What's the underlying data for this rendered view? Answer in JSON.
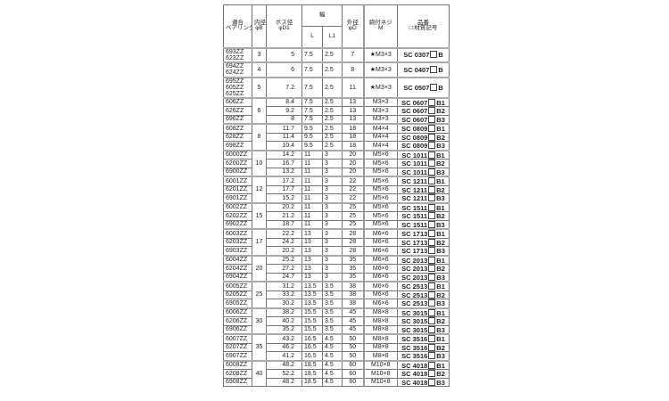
{
  "headers": {
    "bearing": [
      "適合",
      "ベアリング"
    ],
    "bore": [
      "内径",
      "φB"
    ],
    "boss": [
      "ボス径",
      "φD1"
    ],
    "width": "幅",
    "L": "L",
    "L1": "L1",
    "outer": [
      "外径",
      "φD"
    ],
    "screw": [
      "締付ネジ",
      "M"
    ],
    "part": [
      "品番",
      "□:材質記号"
    ]
  },
  "rows": [
    {
      "bearing": [
        "693ZZ",
        "623ZZ"
      ],
      "bore": "3",
      "span": 1,
      "d1": "5",
      "L": "7.5",
      "L1": "2.5",
      "D": "7",
      "M": "★M3×3",
      "part": "SC 0307",
      "suffix": "B"
    },
    {
      "bearing": [
        "694ZZ",
        "624ZZ"
      ],
      "bore": "4",
      "span": 1,
      "d1": "6",
      "L": "7.5",
      "L1": "2.5",
      "D": "8",
      "M": "★M3×3",
      "part": "SC 0407",
      "suffix": "B"
    },
    {
      "bearing": [
        "695ZZ",
        "605ZZ",
        "625ZZ"
      ],
      "bore": "5",
      "span": 1,
      "d1": "7.2",
      "L": "7.5",
      "L1": "2.5",
      "D": "11",
      "M": "★M3×3",
      "part": "SC 0507",
      "suffix": "B"
    },
    {
      "bearing": [
        "606ZZ"
      ],
      "bore": "6",
      "span": 3,
      "d1": "8.4",
      "L": "7.5",
      "L1": "2.5",
      "D": "13",
      "M": "M3×3",
      "part": "SC 0607",
      "suffix": "B1"
    },
    {
      "bearing": [
        "626ZZ"
      ],
      "d1": "9.2",
      "L": "7.5",
      "L1": "2.5",
      "D": "13",
      "M": "M3×3",
      "part": "SC 0607",
      "suffix": "B2"
    },
    {
      "bearing": [
        "696ZZ"
      ],
      "d1": "8",
      "L": "7.5",
      "L1": "2.5",
      "D": "13",
      "M": "M3×3",
      "part": "SC 0607",
      "suffix": "B3"
    },
    {
      "bearing": [
        "608ZZ"
      ],
      "bore": "8",
      "span": 3,
      "d1": "11.7",
      "L": "9.5",
      "L1": "2.5",
      "D": "18",
      "M": "M4×4",
      "part": "SC 0809",
      "suffix": "B1"
    },
    {
      "bearing": [
        "628ZZ"
      ],
      "d1": "11.4",
      "L": "9.5",
      "L1": "2.5",
      "D": "18",
      "M": "M4×4",
      "part": "SC 0809",
      "suffix": "B2"
    },
    {
      "bearing": [
        "698ZZ"
      ],
      "d1": "10.4",
      "L": "9.5",
      "L1": "2.5",
      "D": "18",
      "M": "M4×4",
      "part": "SC 0809",
      "suffix": "B3"
    },
    {
      "bearing": [
        "6000ZZ"
      ],
      "bore": "10",
      "span": 3,
      "d1": "14.2",
      "L": "11",
      "L1": "3",
      "D": "20",
      "M": "M5×6",
      "part": "SC 1011",
      "suffix": "B1"
    },
    {
      "bearing": [
        "6200ZZ"
      ],
      "d1": "16.7",
      "L": "11",
      "L1": "3",
      "D": "20",
      "M": "M5×6",
      "part": "SC 1011",
      "suffix": "B2"
    },
    {
      "bearing": [
        "6900ZZ"
      ],
      "d1": "13.2",
      "L": "11",
      "L1": "3",
      "D": "20",
      "M": "M5×6",
      "part": "SC 1011",
      "suffix": "B3"
    },
    {
      "bearing": [
        "6001ZZ"
      ],
      "bore": "12",
      "span": 3,
      "d1": "17.2",
      "L": "11",
      "L1": "3",
      "D": "22",
      "M": "M5×6",
      "part": "SC 1211",
      "suffix": "B1"
    },
    {
      "bearing": [
        "6201ZZ"
      ],
      "d1": "17.7",
      "L": "11",
      "L1": "3",
      "D": "22",
      "M": "M5×6",
      "part": "SC 1211",
      "suffix": "B2"
    },
    {
      "bearing": [
        "6901ZZ"
      ],
      "d1": "15.2",
      "L": "11",
      "L1": "3",
      "D": "22",
      "M": "M5×6",
      "part": "SC 1211",
      "suffix": "B3"
    },
    {
      "bearing": [
        "6002ZZ"
      ],
      "bore": "15",
      "span": 3,
      "d1": "20.2",
      "L": "11",
      "L1": "3",
      "D": "25",
      "M": "M5×6",
      "part": "SC 1511",
      "suffix": "B1"
    },
    {
      "bearing": [
        "6202ZZ"
      ],
      "d1": "21.2",
      "L": "11",
      "L1": "3",
      "D": "25",
      "M": "M5×6",
      "part": "SC 1511",
      "suffix": "B2"
    },
    {
      "bearing": [
        "6902ZZ"
      ],
      "d1": "18.7",
      "L": "11",
      "L1": "3",
      "D": "25",
      "M": "M5×6",
      "part": "SC 1511",
      "suffix": "B3"
    },
    {
      "bearing": [
        "6003ZZ"
      ],
      "bore": "17",
      "span": 3,
      "d1": "22.2",
      "L": "13",
      "L1": "3",
      "D": "28",
      "M": "M6×6",
      "part": "SC 1713",
      "suffix": "B1"
    },
    {
      "bearing": [
        "6203ZZ"
      ],
      "d1": "24.2",
      "L": "13",
      "L1": "3",
      "D": "28",
      "M": "M6×6",
      "part": "SC 1713",
      "suffix": "B2"
    },
    {
      "bearing": [
        "6903ZZ"
      ],
      "d1": "20.2",
      "L": "13",
      "L1": "3",
      "D": "28",
      "M": "M6×6",
      "part": "SC 1713",
      "suffix": "B3"
    },
    {
      "bearing": [
        "6004ZZ"
      ],
      "bore": "20",
      "span": 3,
      "d1": "25.2",
      "L": "13",
      "L1": "3",
      "D": "35",
      "M": "M6×6",
      "part": "SC 2013",
      "suffix": "B1"
    },
    {
      "bearing": [
        "6204ZZ"
      ],
      "d1": "27.2",
      "L": "13",
      "L1": "3",
      "D": "35",
      "M": "M6×6",
      "part": "SC 2013",
      "suffix": "B2"
    },
    {
      "bearing": [
        "6904ZZ"
      ],
      "d1": "24.7",
      "L": "13",
      "L1": "3",
      "D": "35",
      "M": "M6×6",
      "part": "SC 2013",
      "suffix": "B3"
    },
    {
      "bearing": [
        "6005ZZ"
      ],
      "bore": "25",
      "span": 3,
      "d1": "31.2",
      "L": "13.5",
      "L1": "3.5",
      "D": "38",
      "M": "M6×6",
      "part": "SC 2513",
      "suffix": "B1"
    },
    {
      "bearing": [
        "6205ZZ"
      ],
      "d1": "33.2",
      "L": "13.5",
      "L1": "3.5",
      "D": "38",
      "M": "M6×6",
      "part": "SC 2513",
      "suffix": "B2"
    },
    {
      "bearing": [
        "6905ZZ"
      ],
      "d1": "30.2",
      "L": "13.5",
      "L1": "3.5",
      "D": "38",
      "M": "M6×6",
      "part": "SC 2513",
      "suffix": "B3"
    },
    {
      "bearing": [
        "6006ZZ"
      ],
      "bore": "30",
      "span": 3,
      "d1": "38.2",
      "L": "15.5",
      "L1": "3.5",
      "D": "45",
      "M": "M8×8",
      "part": "SC 3015",
      "suffix": "B1"
    },
    {
      "bearing": [
        "6206ZZ"
      ],
      "d1": "40.2",
      "L": "15.5",
      "L1": "3.5",
      "D": "45",
      "M": "M8×8",
      "part": "SC 3015",
      "suffix": "B2"
    },
    {
      "bearing": [
        "6906ZZ"
      ],
      "d1": "35.2",
      "L": "15.5",
      "L1": "3.5",
      "D": "45",
      "M": "M8×8",
      "part": "SC 3015",
      "suffix": "B3"
    },
    {
      "bearing": [
        "6007ZZ"
      ],
      "bore": "35",
      "span": 3,
      "d1": "43.2",
      "L": "16.5",
      "L1": "4.5",
      "D": "50",
      "M": "M8×8",
      "part": "SC 3516",
      "suffix": "B1"
    },
    {
      "bearing": [
        "6207ZZ"
      ],
      "d1": "46.2",
      "L": "16.5",
      "L1": "4.5",
      "D": "50",
      "M": "M8×8",
      "part": "SC 3516",
      "suffix": "B2"
    },
    {
      "bearing": [
        "6907ZZ"
      ],
      "d1": "41.2",
      "L": "16.5",
      "L1": "4.5",
      "D": "50",
      "M": "M8×8",
      "part": "SC 3516",
      "suffix": "B3"
    },
    {
      "bearing": [
        "6008ZZ"
      ],
      "bore": "40",
      "span": 3,
      "d1": "48.2",
      "L": "18.5",
      "L1": "4.5",
      "D": "60",
      "M": "M10×8",
      "part": "SC 4018",
      "suffix": "B1"
    },
    {
      "bearing": [
        "6208ZZ"
      ],
      "d1": "52.2",
      "L": "18.5",
      "L1": "4.5",
      "D": "60",
      "M": "M10×8",
      "part": "SC 4018",
      "suffix": "B2"
    },
    {
      "bearing": [
        "6908ZZ"
      ],
      "d1": "48.2",
      "L": "18.5",
      "L1": "4.5",
      "D": "60",
      "M": "M10×8",
      "part": "SC 4018",
      "suffix": "B3"
    }
  ]
}
